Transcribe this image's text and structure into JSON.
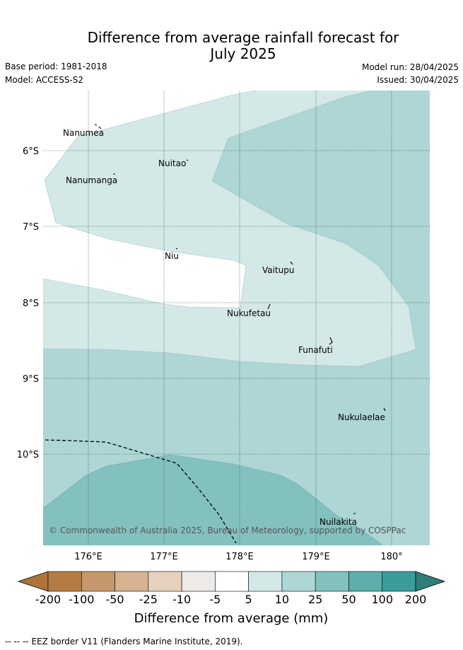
{
  "header": {
    "title_line1": "Difference from average rainfall forecast for",
    "title_line2": "July 2025",
    "base_period": "Base period: 1981-2018",
    "model": "Model: ACCESS-S2",
    "model_run": "Model run: 28/04/2025",
    "issued": "Issued: 30/04/2025"
  },
  "map": {
    "lat_labels": [
      "6°S",
      "7°S",
      "8°S",
      "9°S",
      "10°S"
    ],
    "lon_labels": [
      "176°E",
      "177°E",
      "178°E",
      "179°E",
      "180°"
    ],
    "places": [
      "Nanumea",
      "Nuitao",
      "Nanumanga",
      "Niu",
      "Vaitupu",
      "Nukufetau",
      "Funafuti",
      "Nukulaelae",
      "Nuilakita"
    ],
    "credit": "© Commonwealth of Australia 2025, Bureau of Meteorology, supported by COSPPac",
    "categories_shown": [
      "5 to 10",
      "10 to 25",
      "25 to 50",
      "-5 to 5"
    ]
  },
  "colorbar": {
    "ticks": [
      "-200",
      "-100",
      "-50",
      "-25",
      "-10",
      "-5",
      "5",
      "10",
      "25",
      "50",
      "100",
      "200"
    ],
    "colors": [
      "#ad733b",
      "#b47b43",
      "#c4976d",
      "#d6b192",
      "#e6d1be",
      "#edeae7",
      "#ffffff",
      "#d4e8e7",
      "#add6d5",
      "#83c1bf",
      "#5eaeac",
      "#3a9c9a",
      "#2e7d7b"
    ],
    "title": "Difference from average (mm)"
  },
  "footer": {
    "legend_text": "-- -- -- EEZ border V11 (Flanders Marine Institute, 2019)."
  }
}
